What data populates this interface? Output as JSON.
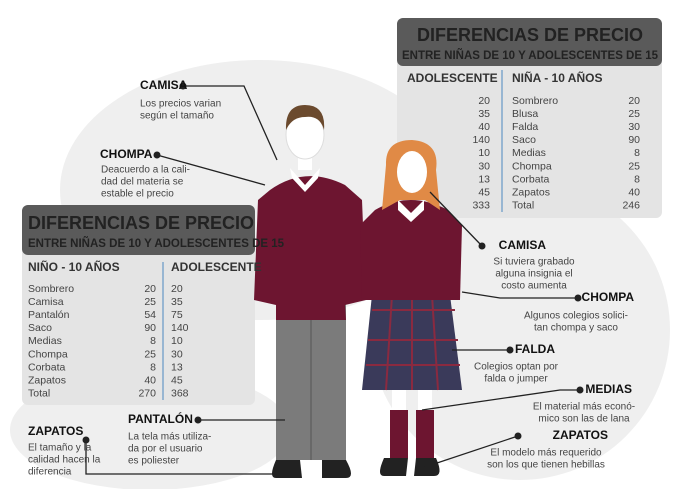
{
  "table_right": {
    "title": "DIFERENCIAS DE PRECIO",
    "subtitle": "ENTRE NIÑAS DE 10 Y ADOLESCENTES DE 15",
    "left_header": "ADOLESCENTE",
    "right_header": "NIÑA - 10 AÑOS",
    "left_values": [
      "20",
      "35",
      "40",
      "140",
      "10",
      "30",
      "13",
      "45",
      "333"
    ],
    "rows": [
      [
        "Sombrero",
        "20"
      ],
      [
        "Blusa",
        "25"
      ],
      [
        "Falda",
        "30"
      ],
      [
        "Saco",
        "90"
      ],
      [
        "Medias",
        "8"
      ],
      [
        "Chompa",
        "25"
      ],
      [
        "Corbata",
        "8"
      ],
      [
        "Zapatos",
        "40"
      ],
      [
        "Total",
        "246"
      ]
    ]
  },
  "table_left": {
    "title": "DIFERENCIAS DE PRECIO",
    "subtitle": "ENTRE NIÑAS DE 10 Y ADOLESCENTES DE 15",
    "left_header": "NIÑO - 10 AÑOS",
    "right_header": "ADOLESCENTE",
    "rows": [
      [
        "Sombrero",
        "20"
      ],
      [
        "Camisa",
        "25"
      ],
      [
        "Pantalón",
        "54"
      ],
      [
        "Saco",
        "90"
      ],
      [
        "Medias",
        "8"
      ],
      [
        "Chompa",
        "25"
      ],
      [
        "Corbata",
        "8"
      ],
      [
        "Zapatos",
        "40"
      ],
      [
        "Total",
        "270"
      ]
    ],
    "right_values": [
      "20",
      "35",
      "75",
      "140",
      "10",
      "30",
      "13",
      "45",
      "368"
    ]
  },
  "annotations": [
    {
      "title": "CAMISA",
      "lines": [
        "Los precios varian",
        "según el tamaño"
      ]
    },
    {
      "title": "CHOMPA",
      "lines": [
        "Deacuerdo a la cali-",
        "dad del materia se",
        "estable el precio"
      ]
    },
    {
      "title": "PANTALÓN",
      "lines": [
        "La tela más utiliza-",
        "da por el usuario",
        "es poliester"
      ]
    },
    {
      "title": "ZAPATOS",
      "lines": [
        "El tamaño y la",
        "calidad hacen la",
        "diferencia"
      ]
    },
    {
      "title": "CAMISA",
      "lines": [
        "Si tuviera grabado",
        "alguna insignia el",
        "costo aumenta"
      ]
    },
    {
      "title": "CHOMPA",
      "lines": [
        "Algunos colegios solici-",
        "tan   chompa y saco"
      ]
    },
    {
      "title": "FALDA",
      "lines": [
        "Colegios optan por",
        "falda o jumper"
      ]
    },
    {
      "title": "MEDIAS",
      "lines": [
        "El material más econó-",
        "mico son   las de lana"
      ]
    },
    {
      "title": "ZAPATOS",
      "lines": [
        "El modelo más requerido",
        "son los que tienen hebillas"
      ]
    }
  ]
}
